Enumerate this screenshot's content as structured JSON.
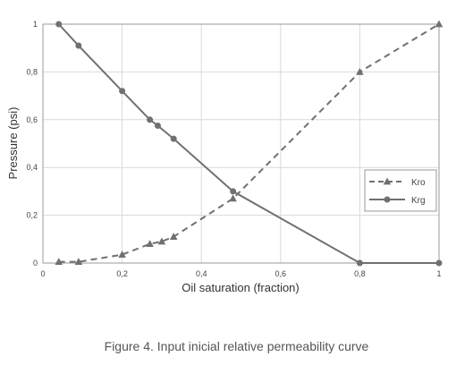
{
  "chart_data": {
    "type": "line",
    "xlabel": "Oil saturation (fraction)",
    "ylabel": "Pressure (psi)",
    "xlim": [
      0,
      1
    ],
    "ylim": [
      0,
      1
    ],
    "xticks": [
      "0",
      "0,2",
      "0,4",
      "0,6",
      "0,8",
      "1"
    ],
    "yticks": [
      "0",
      "0,2",
      "0,4",
      "0,6",
      "0,8",
      "1"
    ],
    "grid": true,
    "legend_position": "right",
    "series": [
      {
        "name": "Kro",
        "line_style": "dashed",
        "marker": "triangle",
        "color": "#707070",
        "x": [
          0.04,
          0.09,
          0.2,
          0.27,
          0.3,
          0.33,
          0.48,
          0.8,
          1.0
        ],
        "y": [
          0.005,
          0.005,
          0.035,
          0.08,
          0.09,
          0.11,
          0.27,
          0.8,
          1.0
        ]
      },
      {
        "name": "Krg",
        "line_style": "solid",
        "marker": "circle",
        "color": "#707070",
        "x": [
          0.04,
          0.09,
          0.2,
          0.27,
          0.29,
          0.33,
          0.48,
          0.8,
          1.0
        ],
        "y": [
          1.0,
          0.91,
          0.72,
          0.6,
          0.575,
          0.52,
          0.3,
          0.0,
          0.0
        ]
      }
    ]
  },
  "caption": "Figure 4. Input inicial relative permeability curve"
}
